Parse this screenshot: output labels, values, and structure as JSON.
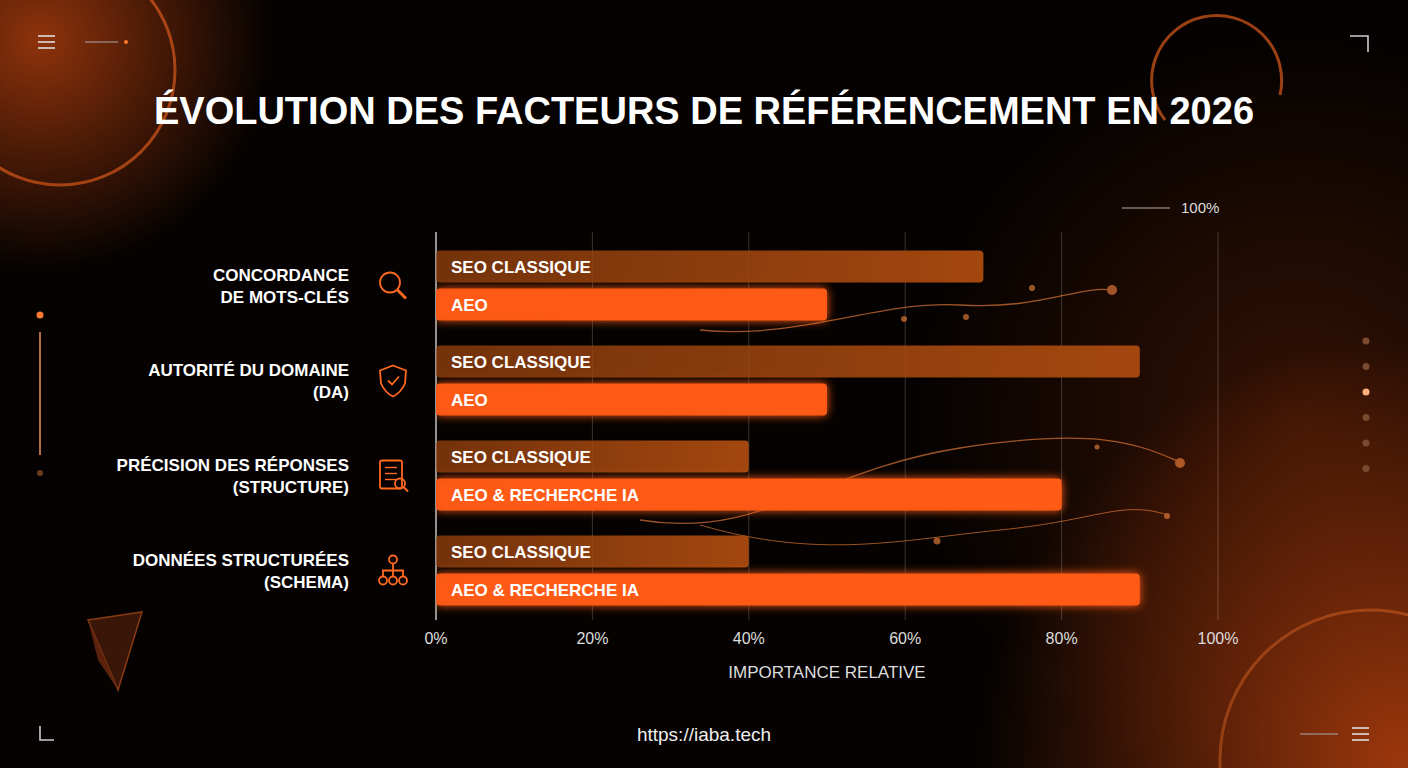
{
  "chart_data": {
    "type": "bar",
    "orientation": "horizontal",
    "title": "ÉVOLUTION DES FACTEURS DE RÉFÉRENCEMENT EN 2026",
    "categories": [
      "CONCORDANCE DE MOTS-CLÉS",
      "AUTORITÉ DU DOMAINE (DA)",
      "PRÉCISION DES RÉPONSES (STRUCTURE)",
      "DONNÉES STRUCTURÉES (SCHEMA)"
    ],
    "series": [
      {
        "name": "SEO CLASSIQUE",
        "color": "#a3470f",
        "values": [
          70,
          90,
          40,
          40
        ]
      },
      {
        "name": "AEO",
        "color": "#ff5a14",
        "values": [
          50,
          50,
          null,
          null
        ]
      },
      {
        "name": "AEO & RECHERCHE IA",
        "color": "#ff5a14",
        "values": [
          null,
          null,
          80,
          90
        ]
      }
    ],
    "xlim": [
      0,
      100
    ],
    "xticks": [
      {
        "value": 0,
        "label": "0%"
      },
      {
        "value": 20,
        "label": "20%"
      },
      {
        "value": 40,
        "label": "40%"
      },
      {
        "value": 60,
        "label": "60%"
      },
      {
        "value": 80,
        "label": "80%"
      },
      {
        "value": 100,
        "label": "100%"
      }
    ],
    "xlabel": "IMPORTANCE RELATIVE",
    "grid": true,
    "annotations": [
      "100%"
    ],
    "source": "https://iaba.tech"
  }
}
